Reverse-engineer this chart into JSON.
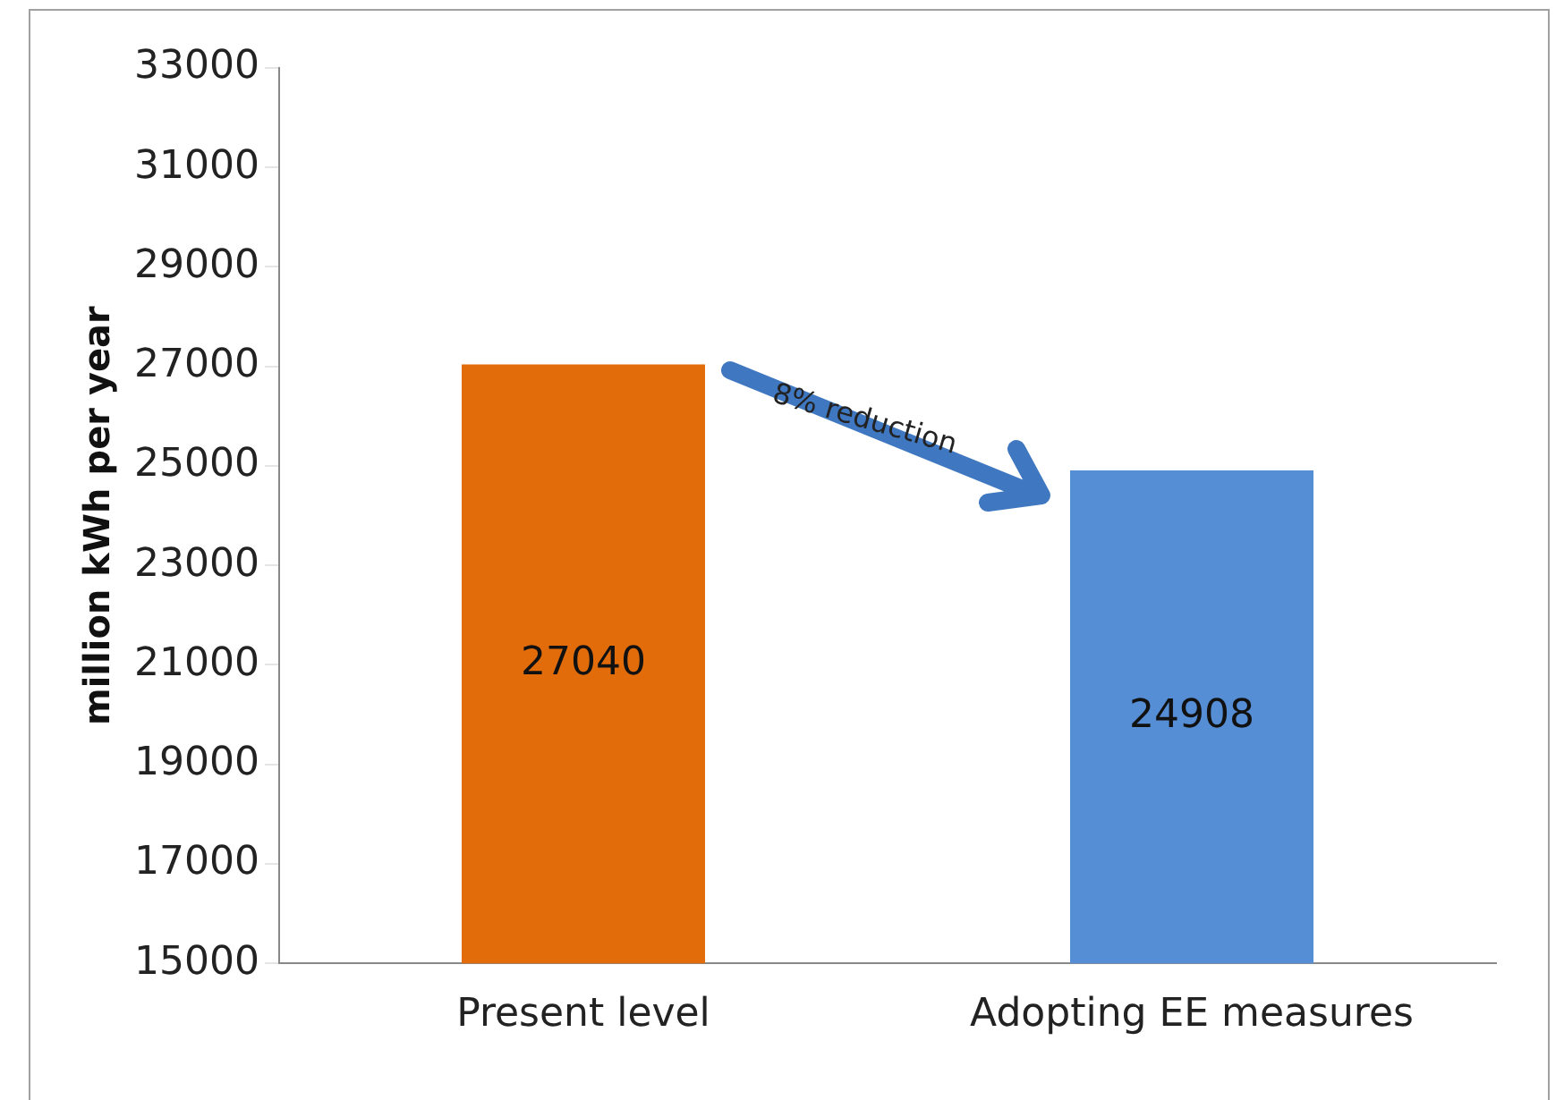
{
  "chart_data": {
    "type": "bar",
    "ylabel": "million kWh per year",
    "categories": [
      "Present level",
      "Adopting EE measures"
    ],
    "values": [
      27040,
      24908
    ],
    "colors": [
      "#e36c0a",
      "#558ed5"
    ],
    "ylim": [
      15000,
      33000
    ],
    "yticks": [
      15000,
      17000,
      19000,
      21000,
      23000,
      25000,
      27000,
      29000,
      31000,
      33000
    ],
    "grid": false,
    "legend": false,
    "data_labels": true,
    "annotations": [
      "8% reduction"
    ]
  }
}
